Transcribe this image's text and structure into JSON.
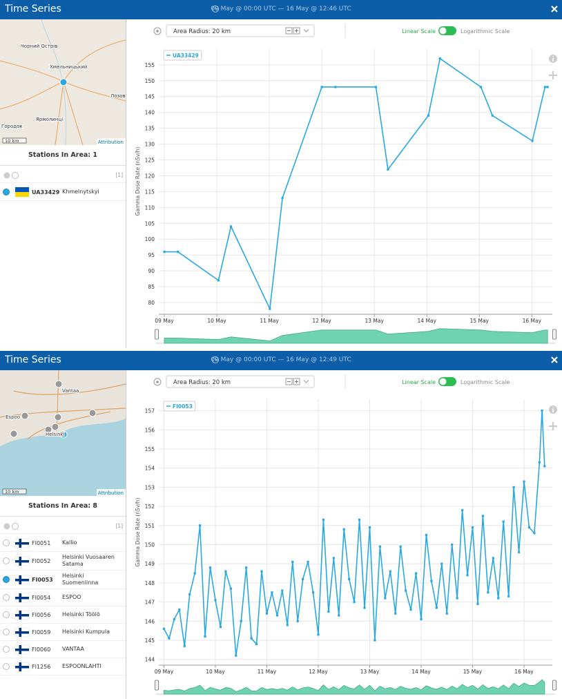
{
  "panels": [
    {
      "header": {
        "title": "Time Series",
        "range": "09 May @ 00:00 UTC — 16 May @ 12:46 UTC"
      },
      "map": {
        "labels": [
          "Чорний Острів",
          "Хмельницький",
          "Лозове",
          "Городок",
          "Ярмолинці"
        ],
        "scale": "10 km",
        "attribution": "Attribution"
      },
      "toolbar": {
        "radius": "Area Radius: 20 km",
        "linear": "Linear Scale",
        "log": "Logarithmic Scale"
      },
      "stations": {
        "title": "Stations In Area: 1",
        "count": "[1]",
        "flag": "ua",
        "rows": [
          {
            "id": "UA33429",
            "name": "Khmelnytskyi",
            "selected": true
          }
        ]
      }
    },
    {
      "header": {
        "title": "Time Series",
        "range": "09 May @ 00:00 UTC — 16 May @ 12:49 UTC"
      },
      "map": {
        "labels": [
          "Vantaa",
          "Espoo",
          "Helsinki"
        ],
        "scale": "10 km",
        "attribution": "Attribution"
      },
      "toolbar": {
        "radius": "Area Radius: 20 km",
        "linear": "Linear Scale",
        "log": "Logarithmic Scale"
      },
      "stations": {
        "title": "Stations In Area: 8",
        "count": "[1]",
        "flag": "fi",
        "rows": [
          {
            "id": "FI0051",
            "name": "Kallio",
            "selected": false
          },
          {
            "id": "FI0052",
            "name": "Helsinki Vuosaaren Satama",
            "selected": false
          },
          {
            "id": "FI0053",
            "name": "Helsinki Suomenlinna",
            "selected": true
          },
          {
            "id": "FI0054",
            "name": "ESPOO",
            "selected": false
          },
          {
            "id": "FI0056",
            "name": "Helsinki Töölö",
            "selected": false
          },
          {
            "id": "FI0059",
            "name": "Helsinki Kumpula",
            "selected": false
          },
          {
            "id": "FI0060",
            "name": "VANTAA",
            "selected": false
          },
          {
            "id": "FI1256",
            "name": "ESPOONLAHTI",
            "selected": false
          }
        ]
      }
    }
  ],
  "chart_data": [
    {
      "type": "line",
      "y_label": "Gamma Dose Rate (nSv/h)",
      "x": [
        9.0,
        9.26,
        10.03,
        10.27,
        11.01,
        11.25,
        12.0,
        12.26,
        13.03,
        13.26,
        14.03,
        14.25,
        15.03,
        15.25,
        16.01,
        16.25,
        16.3
      ],
      "series": [
        {
          "name": "UA33429",
          "color": "#29a8e0",
          "values": [
            96,
            96,
            87,
            104,
            78,
            113,
            148,
            148,
            148,
            122,
            139,
            157,
            148,
            139,
            131,
            148,
            148
          ]
        }
      ],
      "xlim": [
        8.895,
        16.39
      ],
      "ylim": [
        76.3,
        160.2
      ],
      "xticks": [
        {
          "value": 9,
          "label": "09 May"
        },
        {
          "value": 10,
          "label": "10 May"
        },
        {
          "value": 11,
          "label": "11 May"
        },
        {
          "value": 12,
          "label": "12 May"
        },
        {
          "value": 13,
          "label": "13 May"
        },
        {
          "value": 14,
          "label": "14 May"
        },
        {
          "value": 15,
          "label": "15 May"
        },
        {
          "value": 16,
          "label": "16 May"
        }
      ],
      "yticks": [
        80,
        85,
        90,
        95,
        100,
        105,
        110,
        115,
        120,
        125,
        130,
        135,
        140,
        145,
        150,
        155
      ],
      "grid": true
    },
    {
      "type": "line",
      "y_label": "Gamma Dose Rate (nSv/h)",
      "x": [
        9.0,
        9.1,
        9.2,
        9.3,
        9.4,
        9.5,
        9.6,
        9.7,
        9.8,
        9.9,
        10.0,
        10.1,
        10.2,
        10.3,
        10.4,
        10.5,
        10.6,
        10.7,
        10.8,
        10.9,
        11.0,
        11.1,
        11.2,
        11.3,
        11.4,
        11.5,
        11.6,
        11.7,
        11.8,
        11.9,
        12.0,
        12.1,
        12.2,
        12.3,
        12.4,
        12.5,
        12.6,
        12.7,
        12.8,
        12.9,
        13.0,
        13.1,
        13.2,
        13.3,
        13.4,
        13.5,
        13.6,
        13.7,
        13.8,
        13.9,
        14.0,
        14.1,
        14.2,
        14.3,
        14.4,
        14.5,
        14.6,
        14.7,
        14.8,
        14.9,
        15.0,
        15.1,
        15.2,
        15.3,
        15.4,
        15.5,
        15.6,
        15.7,
        15.8,
        15.9,
        16.0,
        16.1,
        16.2,
        16.3,
        16.35,
        16.4
      ],
      "series": [
        {
          "name": "FI0053",
          "color": "#29a8e0",
          "values": [
            145.6,
            145.1,
            146.1,
            146.6,
            144.7,
            147.4,
            148.5,
            151.0,
            145.2,
            148.8,
            147.1,
            145.7,
            148.6,
            147.7,
            144.2,
            146.0,
            148.8,
            145.1,
            144.8,
            148.6,
            146.4,
            147.5,
            146.3,
            147.6,
            145.8,
            149.1,
            146.0,
            148.2,
            149.1,
            147.5,
            145.3,
            151.3,
            146.5,
            149.3,
            146.3,
            150.8,
            148.2,
            147.0,
            151.3,
            146.7,
            150.9,
            145.0,
            149.9,
            147.2,
            148.6,
            146.4,
            149.9,
            147.6,
            146.6,
            148.5,
            146.1,
            150.5,
            148.1,
            146.7,
            149.0,
            146.4,
            150.0,
            147.2,
            151.8,
            148.4,
            150.9,
            146.9,
            151.5,
            147.5,
            149.3,
            147.2,
            151.2,
            147.3,
            153.0,
            149.6,
            153.3,
            150.9,
            150.6,
            154.3,
            157.0,
            154.1
          ]
        }
      ],
      "xlim": [
        8.9,
        16.55
      ],
      "ylim": [
        143.7,
        157.6
      ],
      "xticks": [
        {
          "value": 9,
          "label": "09 May"
        },
        {
          "value": 10,
          "label": "10 May"
        },
        {
          "value": 11,
          "label": "11 May"
        },
        {
          "value": 12,
          "label": "12 May"
        },
        {
          "value": 13,
          "label": "13 May"
        },
        {
          "value": 14,
          "label": "14 May"
        },
        {
          "value": 15,
          "label": "15 May"
        },
        {
          "value": 16,
          "label": "16 May"
        }
      ],
      "yticks": [
        144,
        145,
        146,
        147,
        148,
        149,
        150,
        151,
        152,
        153,
        154,
        155,
        156,
        157
      ],
      "grid": true
    }
  ]
}
